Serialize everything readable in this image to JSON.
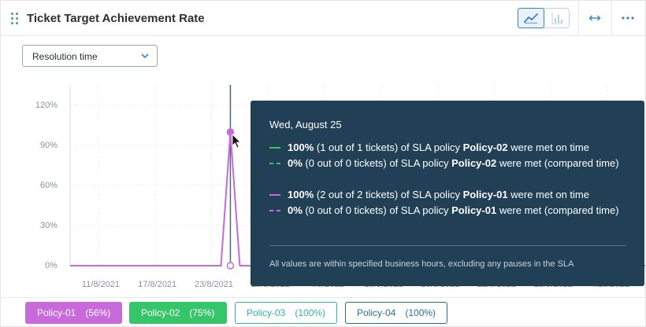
{
  "widget": {
    "title": "Ticket Target Achievement Rate"
  },
  "view_toggle": {
    "line_icon": "line-chart-icon",
    "bar_icon": "bar-chart-icon"
  },
  "header_actions": {
    "expand_icon": "expand-horizontal-icon",
    "more_icon": "more-options-icon"
  },
  "metric_select": {
    "value": "Resolution time",
    "icon": "chevron-down-icon"
  },
  "chart_data": {
    "type": "line",
    "y_ticks": [
      "120%",
      "90%",
      "60%",
      "30%",
      "0%"
    ],
    "x_ticks": [
      "11/8/2021",
      "17/8/2021",
      "23/8/2021",
      "29/8/2021",
      "4/9/2021",
      "10/9/2021",
      "16/9/2021",
      "22/9/2021",
      "28/9/2021",
      "4/10/2021"
    ],
    "ylim": [
      0,
      120
    ],
    "grid": true,
    "hover_date": "Wed, August 25",
    "series": [
      {
        "name": "Policy-01",
        "color": "#c86adb",
        "x": [
          "2021-08-08",
          "2021-08-24",
          "2021-08-25",
          "2021-08-26",
          "2021-10-08"
        ],
        "values": [
          0,
          0,
          100,
          0,
          0
        ]
      },
      {
        "name": "Policy-01 (compared time)",
        "color": "#c86adb",
        "dashed": true,
        "x": [
          "2021-08-25"
        ],
        "values": [
          0
        ]
      }
    ]
  },
  "tooltip": {
    "date": "Wed, August 25",
    "rows": [
      {
        "color": "#37c56a",
        "dashed": false,
        "pct": "100%",
        "detail": " (1 out of 1 tickets) of SLA policy ",
        "policy": "Policy-02",
        "suffix": " were met on time"
      },
      {
        "color": "#37c56a",
        "dashed": true,
        "pct": "0%",
        "detail": " (0 out of 0 tickets) of SLA policy ",
        "policy": "Policy-02",
        "suffix": " were met (compared time)"
      },
      {
        "color": "#c86adb",
        "dashed": false,
        "pct": "100%",
        "detail": " (2 out of 2 tickets) of SLA policy ",
        "policy": "Policy-01",
        "suffix": " were met on time"
      },
      {
        "color": "#c86adb",
        "dashed": true,
        "pct": "0%",
        "detail": " (0 out of 0 tickets) of SLA policy ",
        "policy": "Policy-01",
        "suffix": " were met (compared time)"
      }
    ],
    "footnote": "All values are within specified business hours, excluding any pauses in the SLA"
  },
  "legend": [
    {
      "name": "Policy-01",
      "pct": "(56%)",
      "color": "#c86adb",
      "active": true
    },
    {
      "name": "Policy-02",
      "pct": "(75%)",
      "color": "#37c56a",
      "active": true
    },
    {
      "name": "Policy-03",
      "pct": "(100%)",
      "color": "#35b2a1",
      "active": false
    },
    {
      "name": "Policy-04",
      "pct": "(100%)",
      "color": "#2a6f8f",
      "active": false
    }
  ]
}
